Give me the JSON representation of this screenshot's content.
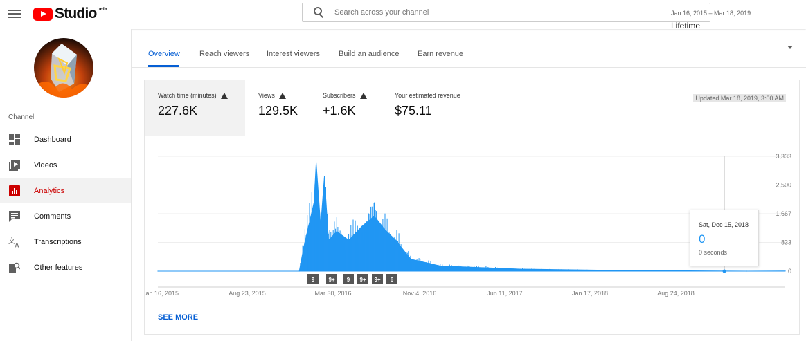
{
  "app": {
    "name": "Studio",
    "badge": "beta"
  },
  "search": {
    "placeholder": "Search across your channel"
  },
  "sidebar": {
    "section_label": "Channel",
    "items": [
      {
        "label": "Dashboard",
        "icon": "dashboard-icon"
      },
      {
        "label": "Videos",
        "icon": "videos-icon"
      },
      {
        "label": "Analytics",
        "icon": "analytics-icon",
        "active": true
      },
      {
        "label": "Comments",
        "icon": "comments-icon"
      },
      {
        "label": "Transcriptions",
        "icon": "transcriptions-icon"
      },
      {
        "label": "Other features",
        "icon": "other-features-icon"
      }
    ]
  },
  "tabs": [
    "Overview",
    "Reach viewers",
    "Interest viewers",
    "Build an audience",
    "Earn revenue"
  ],
  "date_range": {
    "dates": "Jan 16, 2015 – Mar 18, 2019",
    "label": "Lifetime"
  },
  "metrics": [
    {
      "label": "Watch time (minutes)",
      "value": "227.6K",
      "warning": true
    },
    {
      "label": "Views",
      "value": "129.5K",
      "warning": true
    },
    {
      "label": "Subscribers",
      "value": "+1.6K",
      "warning": true
    },
    {
      "label": "Your estimated revenue",
      "value": "$75.11",
      "warning": false
    }
  ],
  "updated": "Updated Mar 18, 2019, 3:00 AM",
  "tooltip": {
    "date": "Sat, Dec 15, 2018",
    "value": "0",
    "sub": "0 seconds"
  },
  "see_more": "SEE MORE",
  "colors": {
    "accent": "#065fd4",
    "active_nav": "#cc0000",
    "series": "#2196f3",
    "logo": "#ff0000"
  },
  "chart_data": {
    "type": "area",
    "series": [
      {
        "name": "Watch time (minutes)"
      }
    ],
    "y_ticks": [
      "0",
      "833",
      "1,667",
      "2,500",
      "3,333"
    ],
    "ylim": [
      0,
      3333
    ],
    "x_labels": [
      "Jan 16, 2015",
      "Aug 23, 2015",
      "Mar 30, 2016",
      "Nov 4, 2016",
      "Jun 11, 2017",
      "Jan 17, 2018",
      "Aug 24, 2018"
    ],
    "x": [
      "2015-01-16",
      "2015-12-25",
      "2016-01-05",
      "2016-01-30",
      "2016-02-04",
      "2016-02-15",
      "2016-02-24",
      "2016-03-05",
      "2016-03-25",
      "2016-04-23",
      "2016-05-25",
      "2016-06-24",
      "2016-07-20",
      "2016-08-15",
      "2016-09-20",
      "2016-12-01",
      "2017-06-11",
      "2018-01-17",
      "2018-12-15",
      "2019-03-18"
    ],
    "values": [
      0,
      0,
      700,
      2000,
      3150,
      1300,
      2750,
      900,
      1150,
      900,
      1300,
      1600,
      1200,
      900,
      350,
      150,
      60,
      25,
      0,
      5
    ],
    "markers": [
      "9",
      "9+",
      "9",
      "9+",
      "9+",
      "6"
    ],
    "grid": true
  }
}
